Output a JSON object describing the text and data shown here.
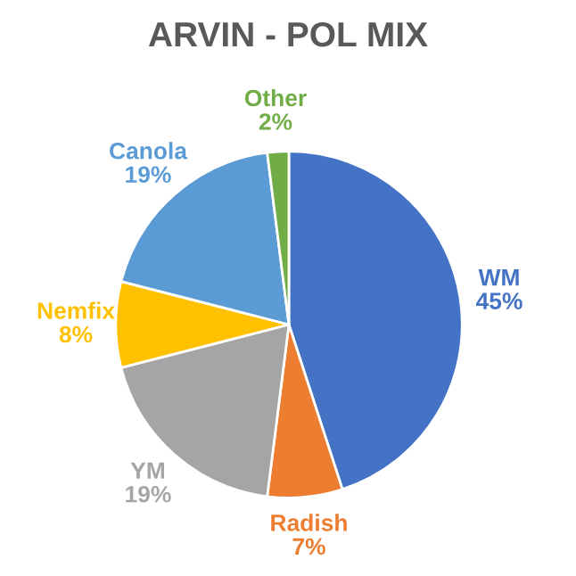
{
  "chart_data": {
    "type": "pie",
    "title": "ARVIN - POL MIX",
    "categories": [
      "WM",
      "Radish",
      "YM",
      "Nemfix",
      "Canola",
      "Other"
    ],
    "values": [
      45,
      7,
      19,
      8,
      19,
      2
    ],
    "colors": [
      "#4472c4",
      "#ed7d31",
      "#a5a5a5",
      "#ffc000",
      "#5b9bd5",
      "#70ad47"
    ],
    "value_labels": [
      "45%",
      "7%",
      "19%",
      "8%",
      "19%",
      "2%"
    ],
    "legend": false
  }
}
